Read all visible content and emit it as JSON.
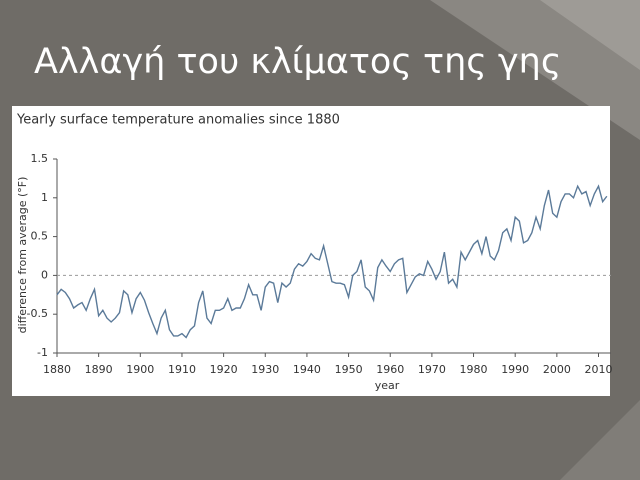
{
  "slide": {
    "title": "Αλλαγή του κλίματος της γης"
  },
  "chart_data": {
    "type": "line",
    "title": "Yearly surface temperature anomalies since 1880",
    "x_label": "year",
    "y_label": "difference from average (°F)",
    "x": [
      1880,
      1881,
      1882,
      1883,
      1884,
      1885,
      1886,
      1887,
      1888,
      1889,
      1890,
      1891,
      1892,
      1893,
      1894,
      1895,
      1896,
      1897,
      1898,
      1899,
      1900,
      1901,
      1902,
      1903,
      1904,
      1905,
      1906,
      1907,
      1908,
      1909,
      1910,
      1911,
      1912,
      1913,
      1914,
      1915,
      1916,
      1917,
      1918,
      1919,
      1920,
      1921,
      1922,
      1923,
      1924,
      1925,
      1926,
      1927,
      1928,
      1929,
      1930,
      1931,
      1932,
      1933,
      1934,
      1935,
      1936,
      1937,
      1938,
      1939,
      1940,
      1941,
      1942,
      1943,
      1944,
      1945,
      1946,
      1947,
      1948,
      1949,
      1950,
      1951,
      1952,
      1953,
      1954,
      1955,
      1956,
      1957,
      1958,
      1959,
      1960,
      1961,
      1962,
      1963,
      1964,
      1965,
      1966,
      1967,
      1968,
      1969,
      1970,
      1971,
      1972,
      1973,
      1974,
      1975,
      1976,
      1977,
      1978,
      1979,
      1980,
      1981,
      1982,
      1983,
      1984,
      1985,
      1986,
      1987,
      1988,
      1989,
      1990,
      1991,
      1992,
      1993,
      1994,
      1995,
      1996,
      1997,
      1998,
      1999,
      2000,
      2001,
      2002,
      2003,
      2004,
      2005,
      2006,
      2007,
      2008,
      2009,
      2010,
      2011,
      2012
    ],
    "series": [
      {
        "name": "anomaly",
        "color": "#5b7a99",
        "values": [
          -0.25,
          -0.18,
          -0.22,
          -0.3,
          -0.42,
          -0.38,
          -0.35,
          -0.45,
          -0.3,
          -0.18,
          -0.52,
          -0.45,
          -0.55,
          -0.6,
          -0.55,
          -0.48,
          -0.2,
          -0.25,
          -0.48,
          -0.3,
          -0.22,
          -0.32,
          -0.48,
          -0.62,
          -0.75,
          -0.55,
          -0.45,
          -0.7,
          -0.78,
          -0.78,
          -0.75,
          -0.8,
          -0.7,
          -0.65,
          -0.35,
          -0.2,
          -0.55,
          -0.62,
          -0.45,
          -0.45,
          -0.42,
          -0.3,
          -0.45,
          -0.42,
          -0.42,
          -0.3,
          -0.12,
          -0.25,
          -0.25,
          -0.45,
          -0.15,
          -0.08,
          -0.1,
          -0.35,
          -0.1,
          -0.15,
          -0.1,
          0.08,
          0.15,
          0.12,
          0.18,
          0.28,
          0.22,
          0.2,
          0.38,
          0.15,
          -0.08,
          -0.1,
          -0.1,
          -0.12,
          -0.28,
          0,
          0.05,
          0.2,
          -0.15,
          -0.2,
          -0.32,
          0.1,
          0.2,
          0.12,
          0.05,
          0.15,
          0.2,
          0.22,
          -0.22,
          -0.12,
          -0.02,
          0.02,
          0,
          0.18,
          0.08,
          -0.05,
          0.05,
          0.3,
          -0.1,
          -0.05,
          -0.15,
          0.3,
          0.2,
          0.3,
          0.4,
          0.45,
          0.28,
          0.5,
          0.25,
          0.2,
          0.32,
          0.55,
          0.6,
          0.45,
          0.75,
          0.7,
          0.42,
          0.45,
          0.55,
          0.75,
          0.6,
          0.9,
          1.1,
          0.8,
          0.75,
          0.95,
          1.05,
          1.05,
          1.0,
          1.15,
          1.05,
          1.08,
          0.9,
          1.05,
          1.15,
          0.95,
          1.02
        ]
      }
    ],
    "xlim": [
      1880,
      2013
    ],
    "xticks": [
      1880,
      1890,
      1900,
      1910,
      1920,
      1930,
      1940,
      1950,
      1960,
      1970,
      1980,
      1990,
      2000,
      2010
    ],
    "ylim": [
      -1,
      1.5
    ],
    "yticks": [
      1.5,
      1,
      0.5,
      0,
      -0.5,
      -1
    ],
    "zero_line": true
  }
}
